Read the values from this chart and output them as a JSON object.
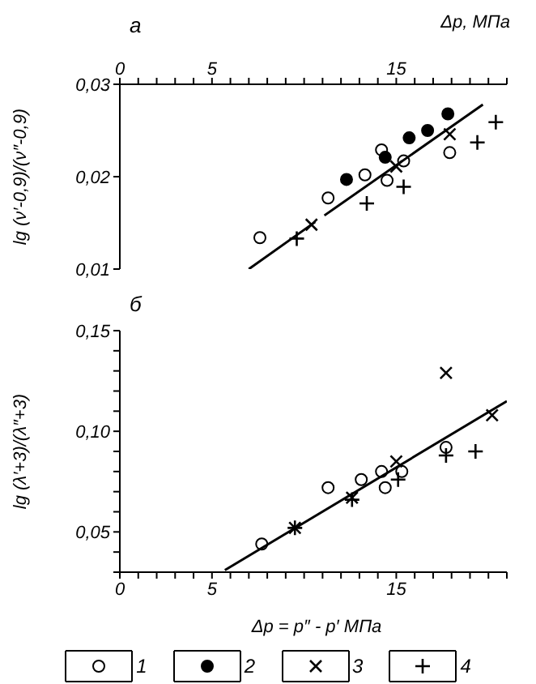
{
  "chart_data": [
    {
      "type": "scatter",
      "title": "а",
      "xlabel": "Δp, МПа",
      "ylabel": "lg (ν′-0,9)/(ν″-0,9)",
      "legend": "bottom",
      "xlim": [
        0,
        21
      ],
      "ylim": [
        0.01,
        0.03
      ],
      "xticks": [
        0,
        {
          "value": 1,
          "label": null
        },
        {
          "value": 2,
          "label": null
        },
        {
          "value": 3,
          "label": null
        },
        {
          "value": 4,
          "label": null
        },
        5,
        {
          "value": 6,
          "label": null
        },
        {
          "value": 7,
          "label": null
        },
        {
          "value": 8,
          "label": null
        },
        {
          "value": 9,
          "label": null
        },
        {
          "value": 10,
          "label": null
        },
        {
          "value": 11,
          "label": null
        },
        {
          "value": 12,
          "label": null
        },
        {
          "value": 13,
          "label": null
        },
        {
          "value": 14,
          "label": null
        },
        15,
        {
          "value": 16,
          "label": null
        },
        {
          "value": 17,
          "label": null
        },
        {
          "value": 18,
          "label": null
        },
        {
          "value": 19,
          "label": null
        },
        {
          "value": 20,
          "label": null
        },
        {
          "value": 21,
          "label": null
        }
      ],
      "yticks": [
        {
          "value": 0.01,
          "label": "0,01"
        },
        {
          "value": 0.02,
          "label": "0,02"
        },
        {
          "value": 0.03,
          "label": "0,03"
        }
      ],
      "series": [
        {
          "name": "1",
          "marker": "circle",
          "color": "#ffffff",
          "x": [
            7.6,
            11.3,
            13.3,
            14.2,
            14.5,
            15.4,
            17.9
          ],
          "values": [
            0.0134,
            0.0177,
            0.0202,
            0.0229,
            0.0196,
            0.0217,
            0.0226
          ]
        },
        {
          "name": "2",
          "marker": "circle",
          "color": "#000000",
          "x": [
            12.3,
            14.4,
            15.7,
            16.7,
            17.8
          ],
          "values": [
            0.0197,
            0.0221,
            0.0242,
            0.025,
            0.0268
          ]
        },
        {
          "name": "3",
          "marker": "x",
          "color": "#000000",
          "x": [
            10.4,
            15.0,
            17.9
          ],
          "values": [
            0.0148,
            0.0211,
            0.0246
          ]
        },
        {
          "name": "4",
          "marker": "cross",
          "color": "#000000",
          "x": [
            9.6,
            13.4,
            15.4,
            19.4,
            20.4
          ],
          "values": [
            0.0133,
            0.0171,
            0.0189,
            0.0237,
            0.0259
          ]
        },
        {
          "type": "line",
          "color": "#000000",
          "x": [
            7.0,
            10.6
          ],
          "values": [
            0.01,
            0.0151
          ]
        },
        {
          "type": "line",
          "color": "#000000",
          "x": [
            11.1,
            19.7
          ],
          "values": [
            0.0158,
            0.0278
          ]
        }
      ]
    },
    {
      "type": "scatter",
      "title": "б",
      "xlabel": "Δp = p″ - p′ МПа",
      "ylabel": "lg (λ′+3)/(λ″+3)",
      "xlim": [
        0,
        21
      ],
      "ylim": [
        0.03,
        0.15
      ],
      "xticks": [
        0,
        {
          "value": 1,
          "label": null
        },
        {
          "value": 2,
          "label": null
        },
        {
          "value": 3,
          "label": null
        },
        {
          "value": 4,
          "label": null
        },
        5,
        {
          "value": 6,
          "label": null
        },
        {
          "value": 7,
          "label": null
        },
        {
          "value": 8,
          "label": null
        },
        {
          "value": 9,
          "label": null
        },
        {
          "value": 10,
          "label": null
        },
        {
          "value": 11,
          "label": null
        },
        {
          "value": 12,
          "label": null
        },
        {
          "value": 13,
          "label": null
        },
        {
          "value": 14,
          "label": null
        },
        15,
        {
          "value": 16,
          "label": null
        },
        {
          "value": 17,
          "label": null
        },
        {
          "value": 18,
          "label": null
        },
        {
          "value": 19,
          "label": null
        },
        {
          "value": 20,
          "label": null
        },
        {
          "value": 21,
          "label": null
        }
      ],
      "yticks": [
        {
          "value": 0.03,
          "label": null
        },
        {
          "value": 0.04,
          "label": null
        },
        {
          "value": 0.05,
          "label": "0,05"
        },
        {
          "value": 0.06,
          "label": null
        },
        {
          "value": 0.07,
          "label": null
        },
        {
          "value": 0.08,
          "label": null
        },
        {
          "value": 0.09,
          "label": null
        },
        {
          "value": 0.1,
          "label": "0,10"
        },
        {
          "value": 0.11,
          "label": null
        },
        {
          "value": 0.12,
          "label": null
        },
        {
          "value": 0.13,
          "label": null
        },
        {
          "value": 0.14,
          "label": null
        },
        {
          "value": 0.15,
          "label": "0,15"
        }
      ],
      "series": [
        {
          "name": "1",
          "marker": "circle",
          "color": "#ffffff",
          "x": [
            7.7,
            11.3,
            13.1,
            14.2,
            14.4,
            15.3,
            17.7
          ],
          "values": [
            0.044,
            0.072,
            0.076,
            0.08,
            0.072,
            0.08,
            0.092
          ]
        },
        {
          "name": "3",
          "marker": "x",
          "color": "#000000",
          "x": [
            9.5,
            12.6,
            15.0,
            17.7,
            20.2
          ],
          "values": [
            0.052,
            0.067,
            0.085,
            0.129,
            0.108
          ]
        },
        {
          "name": "4",
          "marker": "cross",
          "color": "#000000",
          "x": [
            9.5,
            12.6,
            15.1,
            17.7,
            19.3
          ],
          "values": [
            0.052,
            0.066,
            0.076,
            0.088,
            0.09
          ]
        },
        {
          "type": "line",
          "color": "#000000",
          "x": [
            5.7,
            21.0
          ],
          "values": [
            0.031,
            0.115
          ]
        }
      ]
    }
  ]
}
